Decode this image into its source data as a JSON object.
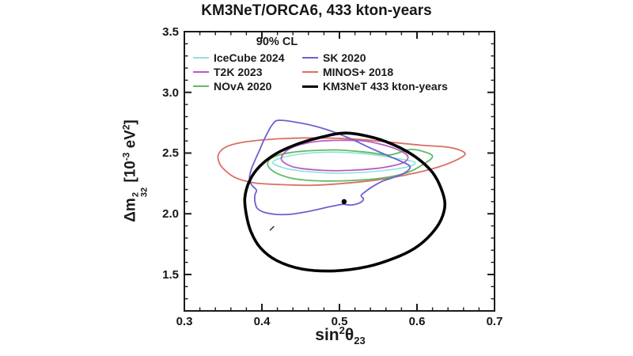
{
  "title": "KM3NeT/ORCA6, 433 kton-years",
  "chart_data": {
    "type": "contour",
    "confidence_level": "90% CL",
    "x_axis": {
      "label": "sin^2(theta_23)",
      "label_parts": [
        [
          "t",
          "sin"
        ],
        [
          "sup",
          "2"
        ],
        [
          "t",
          "θ"
        ],
        [
          "sub",
          "23"
        ]
      ],
      "range": [
        0.3,
        0.7
      ],
      "ticks": [
        0.3,
        0.4,
        0.5,
        0.6,
        0.7
      ],
      "tick_labels": [
        "0.3",
        "0.4",
        "0.5",
        "0.6",
        "0.7"
      ],
      "minor_step": 0.02
    },
    "y_axis": {
      "label": "Delta m^2_32 [10^-3 eV^2]",
      "label_parts": [
        [
          "t",
          "Δm"
        ],
        [
          "supsub",
          "2",
          "32"
        ],
        [
          "t",
          " [10"
        ],
        [
          "sup",
          "-3"
        ],
        [
          "t",
          " eV"
        ],
        [
          "sup",
          "2"
        ],
        [
          "t",
          "]"
        ]
      ],
      "range": [
        1.2,
        3.5
      ],
      "ticks": [
        1.5,
        2.0,
        2.5,
        3.0,
        3.5
      ],
      "tick_labels": [
        "1.5",
        "2.0",
        "2.5",
        "3.0",
        "3.5"
      ],
      "minor_step": 0.1
    },
    "legend": {
      "header": "90% CL"
    },
    "series": [
      {
        "name": "IceCube 2024",
        "color": "#8fe2dc",
        "width": 1.6,
        "points": [
          [
            0.414,
            2.42
          ],
          [
            0.425,
            2.46
          ],
          [
            0.447,
            2.49
          ],
          [
            0.475,
            2.505
          ],
          [
            0.508,
            2.505
          ],
          [
            0.545,
            2.485
          ],
          [
            0.575,
            2.455
          ],
          [
            0.597,
            2.425
          ],
          [
            0.59,
            2.39
          ],
          [
            0.562,
            2.36
          ],
          [
            0.528,
            2.34
          ],
          [
            0.49,
            2.335
          ],
          [
            0.455,
            2.35
          ],
          [
            0.43,
            2.375
          ]
        ]
      },
      {
        "name": "T2K 2023",
        "color": "#b55ec3",
        "width": 1.8,
        "points": [
          [
            0.425,
            2.46
          ],
          [
            0.432,
            2.52
          ],
          [
            0.447,
            2.565
          ],
          [
            0.47,
            2.595
          ],
          [
            0.5,
            2.605
          ],
          [
            0.532,
            2.6
          ],
          [
            0.558,
            2.565
          ],
          [
            0.578,
            2.52
          ],
          [
            0.588,
            2.475
          ],
          [
            0.585,
            2.43
          ],
          [
            0.572,
            2.4
          ],
          [
            0.55,
            2.375
          ],
          [
            0.52,
            2.36
          ],
          [
            0.49,
            2.355
          ],
          [
            0.462,
            2.365
          ],
          [
            0.441,
            2.385
          ],
          [
            0.429,
            2.42
          ]
        ]
      },
      {
        "name": "NOvA 2020",
        "color": "#5fba66",
        "width": 1.8,
        "points": [
          [
            0.408,
            2.43
          ],
          [
            0.418,
            2.475
          ],
          [
            0.438,
            2.505
          ],
          [
            0.465,
            2.52
          ],
          [
            0.5,
            2.525
          ],
          [
            0.537,
            2.505
          ],
          [
            0.565,
            2.485
          ],
          [
            0.592,
            2.53
          ],
          [
            0.612,
            2.505
          ],
          [
            0.62,
            2.47
          ],
          [
            0.61,
            2.415
          ],
          [
            0.588,
            2.34
          ],
          [
            0.556,
            2.295
          ],
          [
            0.52,
            2.275
          ],
          [
            0.48,
            2.27
          ],
          [
            0.445,
            2.285
          ],
          [
            0.422,
            2.325
          ],
          [
            0.41,
            2.375
          ]
        ]
      },
      {
        "name": "SK 2020",
        "color": "#6c61ce",
        "width": 1.8,
        "points": [
          [
            0.422,
            2.77
          ],
          [
            0.452,
            2.745
          ],
          [
            0.483,
            2.695
          ],
          [
            0.512,
            2.625
          ],
          [
            0.537,
            2.55
          ],
          [
            0.56,
            2.485
          ],
          [
            0.58,
            2.43
          ],
          [
            0.591,
            2.39
          ],
          [
            0.585,
            2.34
          ],
          [
            0.568,
            2.295
          ],
          [
            0.556,
            2.27
          ],
          [
            0.543,
            2.225
          ],
          [
            0.533,
            2.18
          ],
          [
            0.528,
            2.15
          ],
          [
            0.531,
            2.12
          ],
          [
            0.526,
            2.09
          ],
          [
            0.515,
            2.072
          ],
          [
            0.505,
            2.078
          ],
          [
            0.498,
            2.072
          ],
          [
            0.485,
            2.055
          ],
          [
            0.468,
            2.03
          ],
          [
            0.45,
            2.008
          ],
          [
            0.435,
            1.995
          ],
          [
            0.418,
            1.995
          ],
          [
            0.403,
            2.012
          ],
          [
            0.394,
            2.045
          ],
          [
            0.391,
            2.1
          ],
          [
            0.391,
            2.155
          ],
          [
            0.393,
            2.195
          ],
          [
            0.387,
            2.235
          ],
          [
            0.384,
            2.29
          ],
          [
            0.386,
            2.36
          ],
          [
            0.391,
            2.44
          ],
          [
            0.397,
            2.525
          ],
          [
            0.402,
            2.6
          ],
          [
            0.408,
            2.675
          ],
          [
            0.413,
            2.73
          ]
        ]
      },
      {
        "name": "MINOS+ 2018",
        "color": "#d96f66",
        "width": 1.8,
        "points": [
          [
            0.344,
            2.49
          ],
          [
            0.352,
            2.545
          ],
          [
            0.368,
            2.58
          ],
          [
            0.395,
            2.605
          ],
          [
            0.43,
            2.62
          ],
          [
            0.475,
            2.625
          ],
          [
            0.52,
            2.615
          ],
          [
            0.565,
            2.59
          ],
          [
            0.605,
            2.565
          ],
          [
            0.638,
            2.55
          ],
          [
            0.655,
            2.525
          ],
          [
            0.662,
            2.49
          ],
          [
            0.65,
            2.44
          ],
          [
            0.625,
            2.38
          ],
          [
            0.59,
            2.325
          ],
          [
            0.55,
            2.28
          ],
          [
            0.505,
            2.25
          ],
          [
            0.465,
            2.235
          ],
          [
            0.425,
            2.24
          ],
          [
            0.39,
            2.255
          ],
          [
            0.365,
            2.3
          ],
          [
            0.349,
            2.38
          ],
          [
            0.344,
            2.44
          ]
        ]
      },
      {
        "name": "KM3NeT 433 kton-years",
        "color": "#000000",
        "width": 3.6,
        "points": [
          [
            0.508,
            2.665
          ],
          [
            0.545,
            2.625
          ],
          [
            0.576,
            2.55
          ],
          [
            0.601,
            2.455
          ],
          [
            0.62,
            2.34
          ],
          [
            0.631,
            2.21
          ],
          [
            0.636,
            2.08
          ],
          [
            0.631,
            1.95
          ],
          [
            0.618,
            1.83
          ],
          [
            0.598,
            1.72
          ],
          [
            0.571,
            1.635
          ],
          [
            0.536,
            1.565
          ],
          [
            0.494,
            1.53
          ],
          [
            0.452,
            1.545
          ],
          [
            0.419,
            1.615
          ],
          [
            0.398,
            1.72
          ],
          [
            0.386,
            1.85
          ],
          [
            0.38,
            1.99
          ],
          [
            0.378,
            2.13
          ],
          [
            0.384,
            2.27
          ],
          [
            0.397,
            2.39
          ],
          [
            0.417,
            2.49
          ],
          [
            0.442,
            2.565
          ],
          [
            0.473,
            2.625
          ]
        ]
      }
    ],
    "markers": [
      {
        "name": "km3net-best-fit",
        "shape": "dot",
        "x": 0.506,
        "y": 2.1,
        "color": "#000000",
        "size": 3.2
      },
      {
        "name": "small-marker",
        "shape": "dash",
        "x": 0.413,
        "y": 1.88,
        "color": "#3a3a3a",
        "size": 2.6
      }
    ],
    "frame_color": "#1a1a1a",
    "background": "#ffffff"
  }
}
